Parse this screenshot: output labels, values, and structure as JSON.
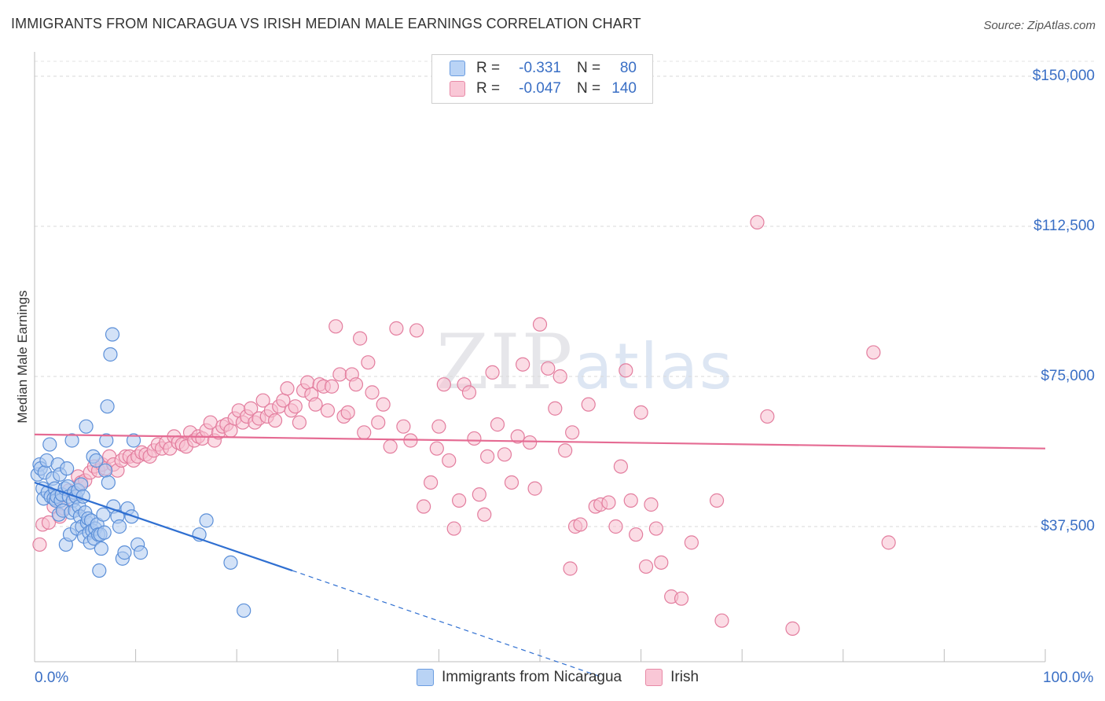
{
  "title": "IMMIGRANTS FROM NICARAGUA VS IRISH MEDIAN MALE EARNINGS CORRELATION CHART",
  "source": "Source: ZipAtlas.com",
  "watermark": {
    "zip": "ZIP",
    "atlas": "atlas"
  },
  "legend": {
    "rows": [
      {
        "swatch_color": "#b9d3f5",
        "border_color": "#6b9de0",
        "r_label": "R =",
        "r_value": "-0.331",
        "n_label": "N =",
        "n_value": "80"
      },
      {
        "swatch_color": "#f9c7d6",
        "border_color": "#e88aa7",
        "r_label": "R =",
        "r_value": "-0.047",
        "n_label": "N =",
        "n_value": "140"
      }
    ]
  },
  "bottom_legend": [
    {
      "label": "Immigrants from Nicaragua",
      "fill": "#b9d3f5",
      "border": "#6b9de0"
    },
    {
      "label": "Irish",
      "fill": "#f9c7d6",
      "border": "#e88aa7"
    }
  ],
  "chart_data": {
    "type": "scatter",
    "xlabel_left": "0.0%",
    "xlabel_right": "100.0%",
    "ylabel": "Median Male Earnings",
    "xlim": [
      0,
      100
    ],
    "ylim": [
      0,
      155000
    ],
    "yticks": [
      {
        "value": 37500,
        "label": "$37,500"
      },
      {
        "value": 75000,
        "label": "$75,000"
      },
      {
        "value": 112500,
        "label": "$112,500"
      },
      {
        "value": 150000,
        "label": "$150,000"
      }
    ],
    "colors": {
      "nicaragua_fill": "#aecbf1",
      "nicaragua_stroke": "#5b8fd8",
      "irish_fill": "#f7bfd0",
      "irish_stroke": "#e37d9e",
      "nicaragua_line": "#2f6fd1",
      "irish_line": "#e56b93"
    },
    "series": [
      {
        "name": "Immigrants from Nicaragua",
        "trend": {
          "x0": 0,
          "y0": 48500,
          "x1": 25.5,
          "y1": 26500,
          "dash_to_x": 56,
          "dash_to_y": 0
        },
        "points": [
          [
            0.3,
            50500
          ],
          [
            0.5,
            53000
          ],
          [
            0.6,
            52000
          ],
          [
            0.8,
            47000
          ],
          [
            0.9,
            44500
          ],
          [
            1.0,
            51000
          ],
          [
            1.2,
            54000
          ],
          [
            1.3,
            46000
          ],
          [
            1.5,
            58000
          ],
          [
            1.6,
            45000
          ],
          [
            1.8,
            49500
          ],
          [
            1.9,
            44500
          ],
          [
            2.0,
            47000
          ],
          [
            2.1,
            44000
          ],
          [
            2.2,
            45000
          ],
          [
            2.3,
            53000
          ],
          [
            2.4,
            40500
          ],
          [
            2.5,
            50500
          ],
          [
            2.6,
            44000
          ],
          [
            2.7,
            45500
          ],
          [
            2.8,
            41500
          ],
          [
            3.0,
            47000
          ],
          [
            3.1,
            33000
          ],
          [
            3.2,
            52000
          ],
          [
            3.3,
            47500
          ],
          [
            3.4,
            45000
          ],
          [
            3.5,
            35500
          ],
          [
            3.6,
            41000
          ],
          [
            3.7,
            59000
          ],
          [
            3.8,
            44000
          ],
          [
            3.9,
            46000
          ],
          [
            4.0,
            41500
          ],
          [
            4.1,
            45000
          ],
          [
            4.2,
            37000
          ],
          [
            4.3,
            46500
          ],
          [
            4.4,
            42500
          ],
          [
            4.5,
            40000
          ],
          [
            4.6,
            48000
          ],
          [
            4.7,
            37500
          ],
          [
            4.8,
            45000
          ],
          [
            4.9,
            35000
          ],
          [
            5.0,
            41000
          ],
          [
            5.1,
            62500
          ],
          [
            5.2,
            38500
          ],
          [
            5.3,
            39500
          ],
          [
            5.4,
            36000
          ],
          [
            5.5,
            33500
          ],
          [
            5.6,
            39000
          ],
          [
            5.7,
            36500
          ],
          [
            5.8,
            55000
          ],
          [
            5.9,
            34500
          ],
          [
            6.0,
            37000
          ],
          [
            6.1,
            54000
          ],
          [
            6.2,
            38000
          ],
          [
            6.3,
            35500
          ],
          [
            6.4,
            26500
          ],
          [
            6.5,
            35500
          ],
          [
            6.6,
            32000
          ],
          [
            6.8,
            40500
          ],
          [
            6.9,
            36000
          ],
          [
            7.0,
            51500
          ],
          [
            7.1,
            59000
          ],
          [
            7.2,
            67500
          ],
          [
            7.3,
            48500
          ],
          [
            7.5,
            80500
          ],
          [
            7.7,
            85500
          ],
          [
            7.8,
            42500
          ],
          [
            8.2,
            40000
          ],
          [
            8.4,
            37500
          ],
          [
            8.7,
            29500
          ],
          [
            8.9,
            31000
          ],
          [
            9.2,
            42000
          ],
          [
            9.6,
            40000
          ],
          [
            9.8,
            59000
          ],
          [
            10.2,
            33000
          ],
          [
            10.5,
            31000
          ],
          [
            16.3,
            35500
          ],
          [
            17.0,
            39000
          ],
          [
            19.4,
            28500
          ],
          [
            20.7,
            16500
          ]
        ]
      },
      {
        "name": "Irish",
        "trend": {
          "x0": 0,
          "y0": 60500,
          "x1": 100,
          "y1": 57000
        },
        "points": [
          [
            0.5,
            33000
          ],
          [
            0.8,
            38000
          ],
          [
            1.4,
            38500
          ],
          [
            1.9,
            42500
          ],
          [
            2.5,
            40000
          ],
          [
            2.9,
            42000
          ],
          [
            3.4,
            46500
          ],
          [
            3.8,
            45500
          ],
          [
            4.3,
            50000
          ],
          [
            4.6,
            48500
          ],
          [
            5.0,
            49000
          ],
          [
            5.5,
            51000
          ],
          [
            5.9,
            52500
          ],
          [
            6.3,
            51500
          ],
          [
            6.7,
            53000
          ],
          [
            7.0,
            52000
          ],
          [
            7.4,
            55000
          ],
          [
            7.8,
            53000
          ],
          [
            8.2,
            51500
          ],
          [
            8.6,
            54000
          ],
          [
            9.0,
            55000
          ],
          [
            9.4,
            55000
          ],
          [
            9.8,
            54000
          ],
          [
            10.2,
            55000
          ],
          [
            10.6,
            56000
          ],
          [
            11.0,
            55500
          ],
          [
            11.4,
            55000
          ],
          [
            11.8,
            56500
          ],
          [
            12.2,
            58000
          ],
          [
            12.6,
            57000
          ],
          [
            13.0,
            58500
          ],
          [
            13.4,
            57000
          ],
          [
            13.8,
            60000
          ],
          [
            14.2,
            58500
          ],
          [
            14.6,
            58000
          ],
          [
            15.0,
            57500
          ],
          [
            15.4,
            61000
          ],
          [
            15.8,
            59000
          ],
          [
            16.2,
            60000
          ],
          [
            16.6,
            59500
          ],
          [
            17.0,
            61500
          ],
          [
            17.4,
            63500
          ],
          [
            17.8,
            59000
          ],
          [
            18.2,
            61000
          ],
          [
            18.6,
            62500
          ],
          [
            19.0,
            63000
          ],
          [
            19.4,
            61500
          ],
          [
            19.8,
            64500
          ],
          [
            20.2,
            66500
          ],
          [
            20.6,
            63500
          ],
          [
            21.0,
            65000
          ],
          [
            21.4,
            67000
          ],
          [
            21.8,
            63500
          ],
          [
            22.2,
            64500
          ],
          [
            22.6,
            69000
          ],
          [
            23.0,
            65000
          ],
          [
            23.4,
            66500
          ],
          [
            23.8,
            64000
          ],
          [
            24.2,
            67500
          ],
          [
            24.6,
            69000
          ],
          [
            25.0,
            72000
          ],
          [
            25.4,
            66500
          ],
          [
            25.8,
            67500
          ],
          [
            26.2,
            63500
          ],
          [
            26.6,
            71500
          ],
          [
            27.0,
            73500
          ],
          [
            27.4,
            70500
          ],
          [
            27.8,
            68000
          ],
          [
            28.2,
            73000
          ],
          [
            28.6,
            72500
          ],
          [
            29.0,
            66500
          ],
          [
            29.4,
            72500
          ],
          [
            29.8,
            87500
          ],
          [
            30.2,
            75500
          ],
          [
            30.6,
            65000
          ],
          [
            31.0,
            66000
          ],
          [
            31.4,
            75500
          ],
          [
            31.8,
            73000
          ],
          [
            32.2,
            84500
          ],
          [
            32.6,
            61000
          ],
          [
            33.0,
            78500
          ],
          [
            33.4,
            71000
          ],
          [
            34.0,
            63500
          ],
          [
            34.5,
            68000
          ],
          [
            35.2,
            57500
          ],
          [
            35.8,
            87000
          ],
          [
            36.5,
            62500
          ],
          [
            37.2,
            59000
          ],
          [
            37.8,
            86500
          ],
          [
            38.5,
            42500
          ],
          [
            39.2,
            48500
          ],
          [
            39.8,
            57000
          ],
          [
            40.5,
            73000
          ],
          [
            41.0,
            54000
          ],
          [
            41.5,
            37000
          ],
          [
            42.0,
            44000
          ],
          [
            42.5,
            73000
          ],
          [
            43.0,
            71000
          ],
          [
            43.5,
            59500
          ],
          [
            44.0,
            45500
          ],
          [
            44.8,
            55000
          ],
          [
            45.3,
            76000
          ],
          [
            45.8,
            63000
          ],
          [
            46.5,
            55500
          ],
          [
            47.2,
            48500
          ],
          [
            47.8,
            60000
          ],
          [
            48.3,
            78000
          ],
          [
            49.0,
            58500
          ],
          [
            49.5,
            47000
          ],
          [
            50.0,
            88000
          ],
          [
            50.8,
            77000
          ],
          [
            51.5,
            67000
          ],
          [
            52.0,
            75000
          ],
          [
            52.5,
            56500
          ],
          [
            53.0,
            27000
          ],
          [
            53.5,
            37500
          ],
          [
            54.0,
            38000
          ],
          [
            54.8,
            68000
          ],
          [
            55.5,
            42500
          ],
          [
            56.0,
            43000
          ],
          [
            56.8,
            43500
          ],
          [
            57.5,
            37500
          ],
          [
            58.0,
            52500
          ],
          [
            58.5,
            76500
          ],
          [
            59.0,
            44000
          ],
          [
            59.5,
            35500
          ],
          [
            60.0,
            66000
          ],
          [
            60.5,
            27500
          ],
          [
            61.0,
            43000
          ],
          [
            61.5,
            37000
          ],
          [
            62.0,
            28500
          ],
          [
            63.0,
            20000
          ],
          [
            64.0,
            19500
          ],
          [
            65.0,
            33500
          ],
          [
            68.0,
            14000
          ],
          [
            71.5,
            113500
          ],
          [
            72.5,
            65000
          ],
          [
            83.0,
            81000
          ],
          [
            84.5,
            33500
          ],
          [
            75.0,
            12000
          ],
          [
            67.5,
            44000
          ],
          [
            40.0,
            62500
          ],
          [
            44.5,
            40500
          ],
          [
            53.2,
            61000
          ]
        ]
      }
    ]
  }
}
